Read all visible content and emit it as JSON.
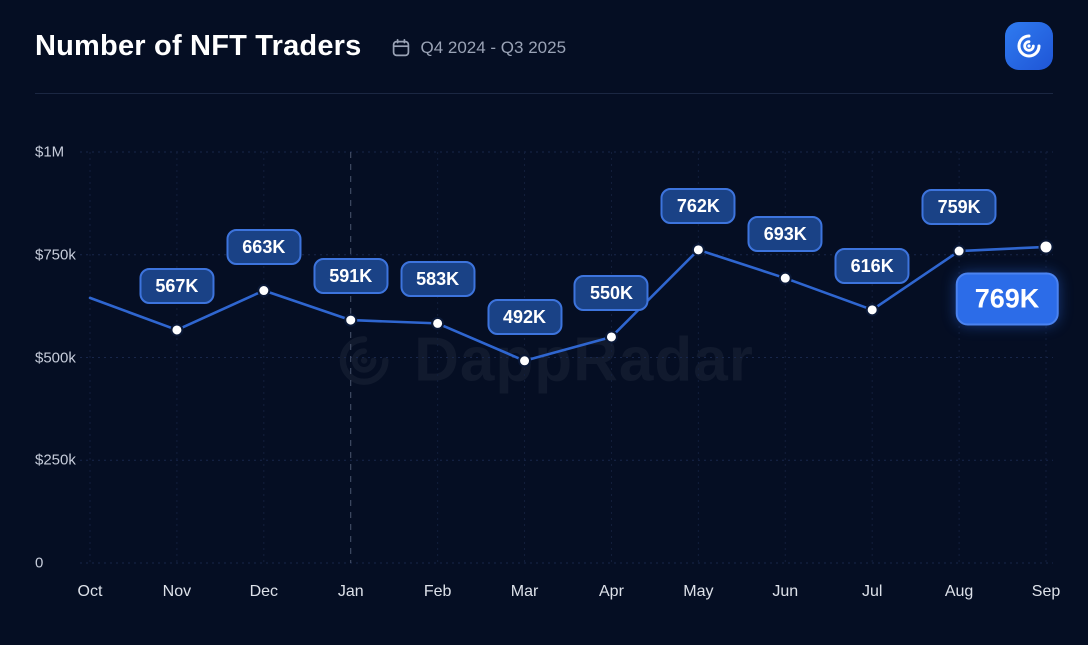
{
  "header": {
    "title": "Number of NFT Traders",
    "period": "Q4 2024 - Q3 2025"
  },
  "watermark": "DappRadar",
  "chart_data": {
    "type": "line",
    "title": "Number of NFT Traders",
    "x": [
      "Oct",
      "Nov",
      "Dec",
      "Jan",
      "Feb",
      "Mar",
      "Apr",
      "May",
      "Jun",
      "Jul",
      "Aug",
      "Sep"
    ],
    "values": [
      645000,
      567000,
      663000,
      591000,
      583000,
      492000,
      550000,
      762000,
      693000,
      616000,
      759000,
      769000
    ],
    "labels": [
      null,
      "567K",
      "663K",
      "591K",
      "583K",
      "492K",
      "550K",
      "762K",
      "693K",
      "616K",
      "759K",
      "769K"
    ],
    "highlight_index": 11,
    "highlight_label": "769K",
    "y_ticks": [
      "$1M",
      "$750k",
      "$500k",
      "$250k",
      "0"
    ],
    "y_tick_values": [
      1000000,
      750000,
      500000,
      250000,
      0
    ],
    "ylim": [
      0,
      1000000
    ],
    "year_divider_month": "Jan",
    "grid": true,
    "legend": false,
    "colors": {
      "background": "#050e23",
      "line": "#2f66d0",
      "marker": "#ffffff",
      "badge_fill": "#1a4286",
      "badge_border": "#3d74dd",
      "highlight_fill": "#2c6ce8",
      "grid": "#18264a",
      "year_divider": "#4b5670"
    }
  }
}
